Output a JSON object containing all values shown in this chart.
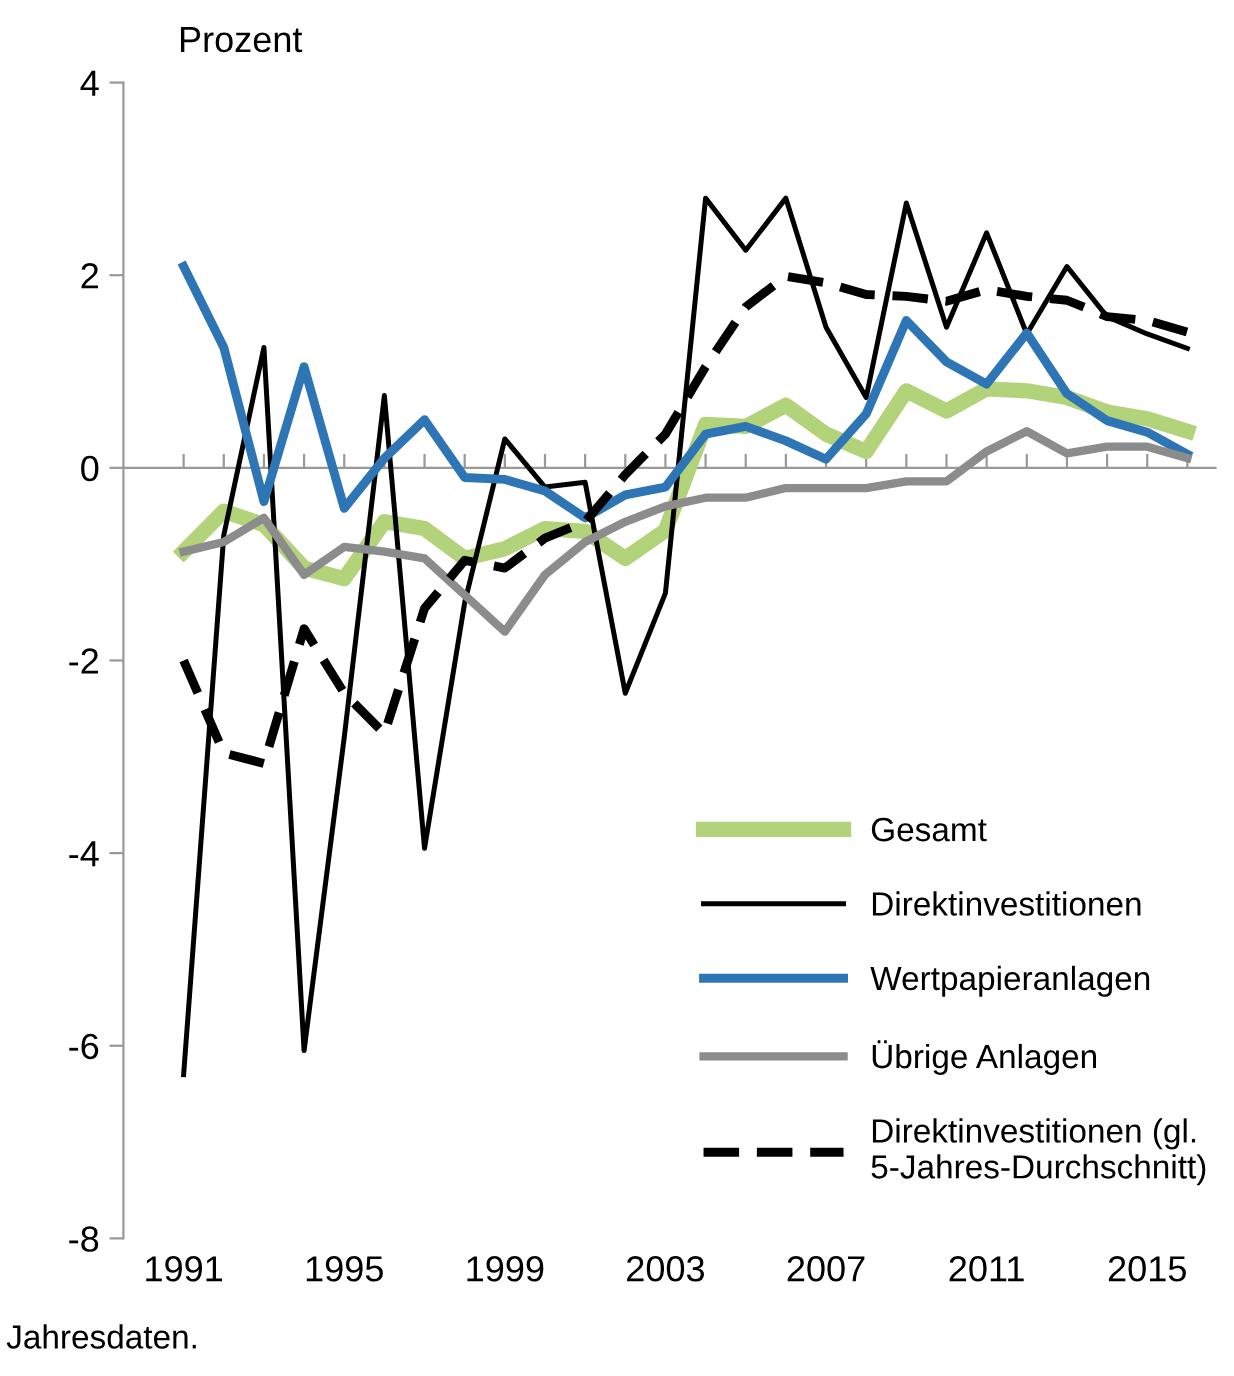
{
  "chart_data": {
    "type": "line",
    "ylabel": "Prozent",
    "x": [
      1991,
      1992,
      1993,
      1994,
      1995,
      1996,
      1997,
      1998,
      1999,
      2000,
      2001,
      2002,
      2003,
      2004,
      2005,
      2006,
      2007,
      2008,
      2009,
      2010,
      2011,
      2012,
      2013,
      2014,
      2015,
      2016
    ],
    "series": [
      {
        "name": "Gesamt",
        "color": "#b3d37a",
        "values": [
          -0.87,
          -0.45,
          -0.59,
          -1.04,
          -1.15,
          -0.56,
          -0.63,
          -0.94,
          -0.84,
          -0.63,
          -0.66,
          -0.94,
          -0.65,
          0.45,
          0.43,
          0.65,
          0.35,
          0.17,
          0.8,
          0.59,
          0.82,
          0.8,
          0.73,
          0.58,
          0.51,
          0.38
        ]
      },
      {
        "name": "Direktinvestitionen",
        "color": "#000000",
        "values": [
          -6.3,
          -0.7,
          1.25,
          -6.05,
          -2.8,
          0.75,
          -3.95,
          -1.4,
          0.3,
          -0.2,
          -0.15,
          -2.34,
          -1.3,
          2.8,
          2.26,
          2.8,
          1.46,
          0.73,
          2.75,
          1.46,
          2.44,
          1.39,
          2.09,
          1.57,
          1.39,
          1.24
        ]
      },
      {
        "name": "Wertpapieranlagen",
        "color": "#2e75b6",
        "values": [
          2.09,
          1.25,
          -0.35,
          1.05,
          -0.42,
          0.1,
          0.5,
          -0.1,
          -0.12,
          -0.24,
          -0.52,
          -0.28,
          -0.2,
          0.35,
          0.43,
          0.28,
          0.09,
          0.56,
          1.53,
          1.1,
          0.87,
          1.4,
          0.77,
          0.49,
          0.37,
          0.14
        ]
      },
      {
        "name": "Übrige Anlagen",
        "color": "#8c8c8c",
        "values": [
          -0.87,
          -0.77,
          -0.52,
          -1.11,
          -0.82,
          -0.87,
          -0.94,
          -1.32,
          -1.7,
          -1.11,
          -0.77,
          -0.56,
          -0.4,
          -0.31,
          -0.31,
          -0.21,
          -0.21,
          -0.21,
          -0.14,
          -0.14,
          0.17,
          0.38,
          0.15,
          0.22,
          0.22,
          0.1
        ]
      },
      {
        "name": "Direktinvestitionen (gl.\n5-Jahres-Durchschnitt)",
        "color": "#000000",
        "line_style": "dashed",
        "values": [
          -2.0,
          -2.96,
          -3.07,
          -1.67,
          -2.34,
          -2.76,
          -1.46,
          -0.96,
          -1.04,
          -0.73,
          -0.56,
          -0.07,
          0.35,
          1.05,
          1.67,
          1.99,
          1.92,
          1.8,
          1.78,
          1.73,
          1.85,
          1.78,
          1.74,
          1.57,
          1.53,
          1.41
        ]
      }
    ],
    "xlim": [
      1989.5,
      2016.7
    ],
    "xticks": [
      1991,
      {
        "value": 1992,
        "label": null
      },
      {
        "value": 1993,
        "label": null
      },
      {
        "value": 1994,
        "label": null
      },
      1995,
      {
        "value": 1996,
        "label": null
      },
      {
        "value": 1997,
        "label": null
      },
      {
        "value": 1998,
        "label": null
      },
      1999,
      {
        "value": 2000,
        "label": null
      },
      {
        "value": 2001,
        "label": null
      },
      {
        "value": 2002,
        "label": null
      },
      2003,
      {
        "value": 2004,
        "label": null
      },
      {
        "value": 2005,
        "label": null
      },
      {
        "value": 2006,
        "label": null
      },
      2007,
      {
        "value": 2008,
        "label": null
      },
      {
        "value": 2009,
        "label": null
      },
      {
        "value": 2010,
        "label": null
      },
      2011,
      {
        "value": 2012,
        "label": null
      },
      {
        "value": 2013,
        "label": null
      },
      {
        "value": 2014,
        "label": null
      },
      2015,
      {
        "value": 2016,
        "label": null
      }
    ],
    "ylim": [
      -8,
      4
    ],
    "yticks": [
      -8,
      -6,
      -4,
      -2,
      0,
      2,
      4
    ],
    "legend": "bottom right",
    "marker": "none",
    "annotations": [
      "Jahresdaten."
    ]
  }
}
